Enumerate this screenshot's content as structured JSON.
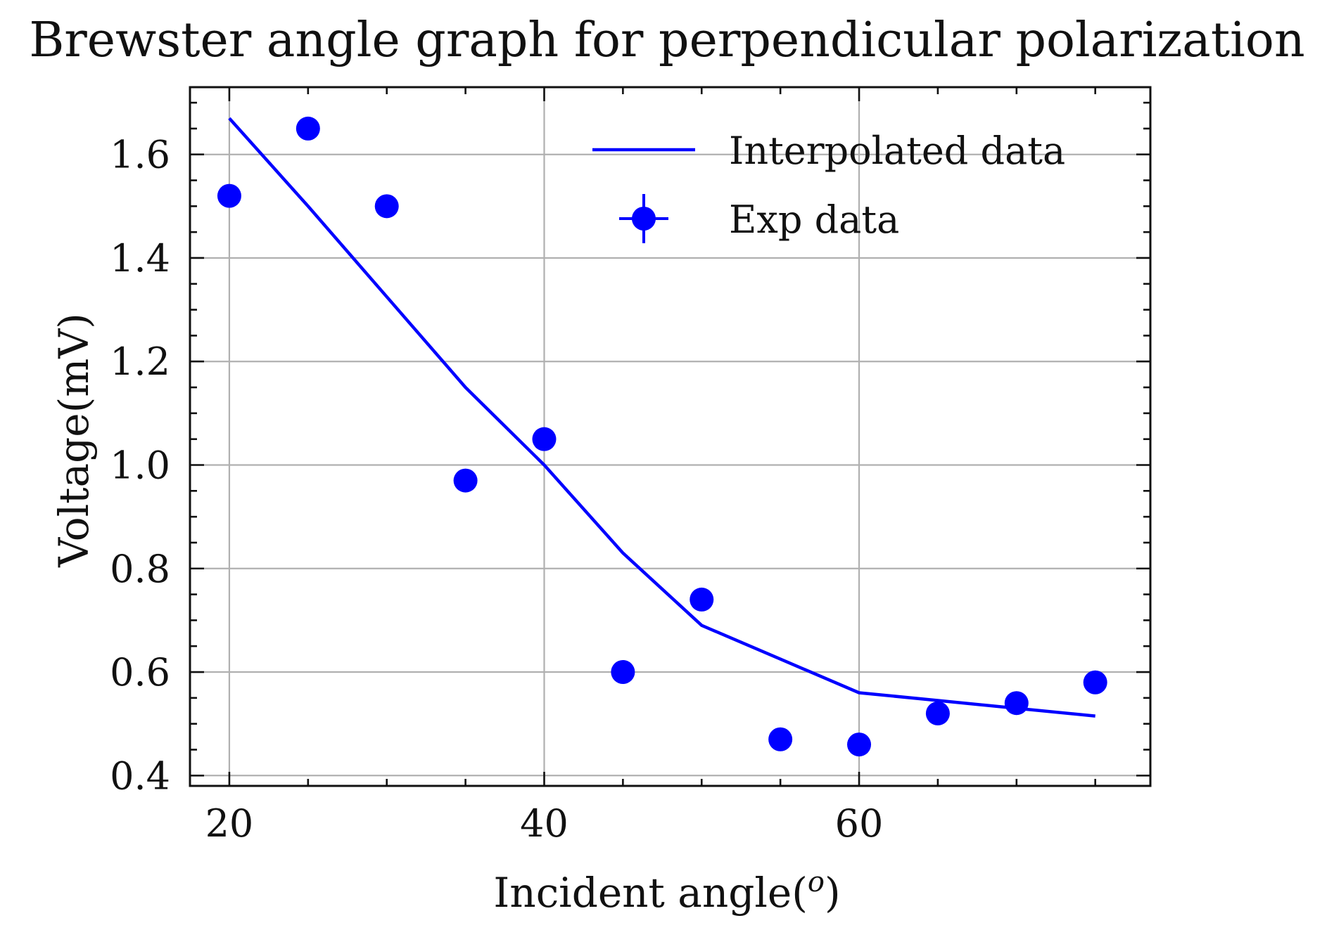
{
  "chart_data": {
    "type": "line",
    "title": "Brewster angle graph for perpendicular polarization",
    "xlabel": "Incident angle(",
    "xlabel_sup": "o",
    "xlabel_end": ")",
    "ylabel": "Voltage(mV)",
    "xlim": [
      17.5,
      78.5
    ],
    "ylim": [
      0.38,
      1.73
    ],
    "xticks": [
      20,
      40,
      60
    ],
    "xtick_labels": [
      "20",
      "40",
      "60"
    ],
    "xminor_step": 5,
    "yticks": [
      0.4,
      0.6,
      0.8,
      1.0,
      1.2,
      1.4,
      1.6
    ],
    "ytick_labels": [
      "0.4",
      "0.6",
      "0.8",
      "1.0",
      "1.2",
      "1.4",
      "1.6"
    ],
    "yminor_step": 0.05,
    "grid": true,
    "legend_position": "top-right",
    "series": [
      {
        "name": "Interpolated data",
        "kind": "line",
        "color": "#0000ff",
        "x": [
          20,
          25,
          30,
          35,
          40,
          45,
          50,
          55,
          60,
          65,
          70,
          75
        ],
        "y": [
          1.67,
          1.5,
          1.325,
          1.15,
          1.0,
          0.83,
          0.69,
          0.625,
          0.56,
          0.545,
          0.53,
          0.515
        ]
      },
      {
        "name": "Exp data",
        "kind": "errorbar-scatter",
        "color": "#0000ff",
        "x": [
          20,
          25,
          30,
          35,
          40,
          45,
          50,
          55,
          60,
          65,
          70,
          75
        ],
        "y": [
          1.52,
          1.65,
          1.5,
          0.97,
          1.05,
          0.6,
          0.74,
          0.47,
          0.46,
          0.52,
          0.54,
          0.58
        ]
      }
    ]
  }
}
